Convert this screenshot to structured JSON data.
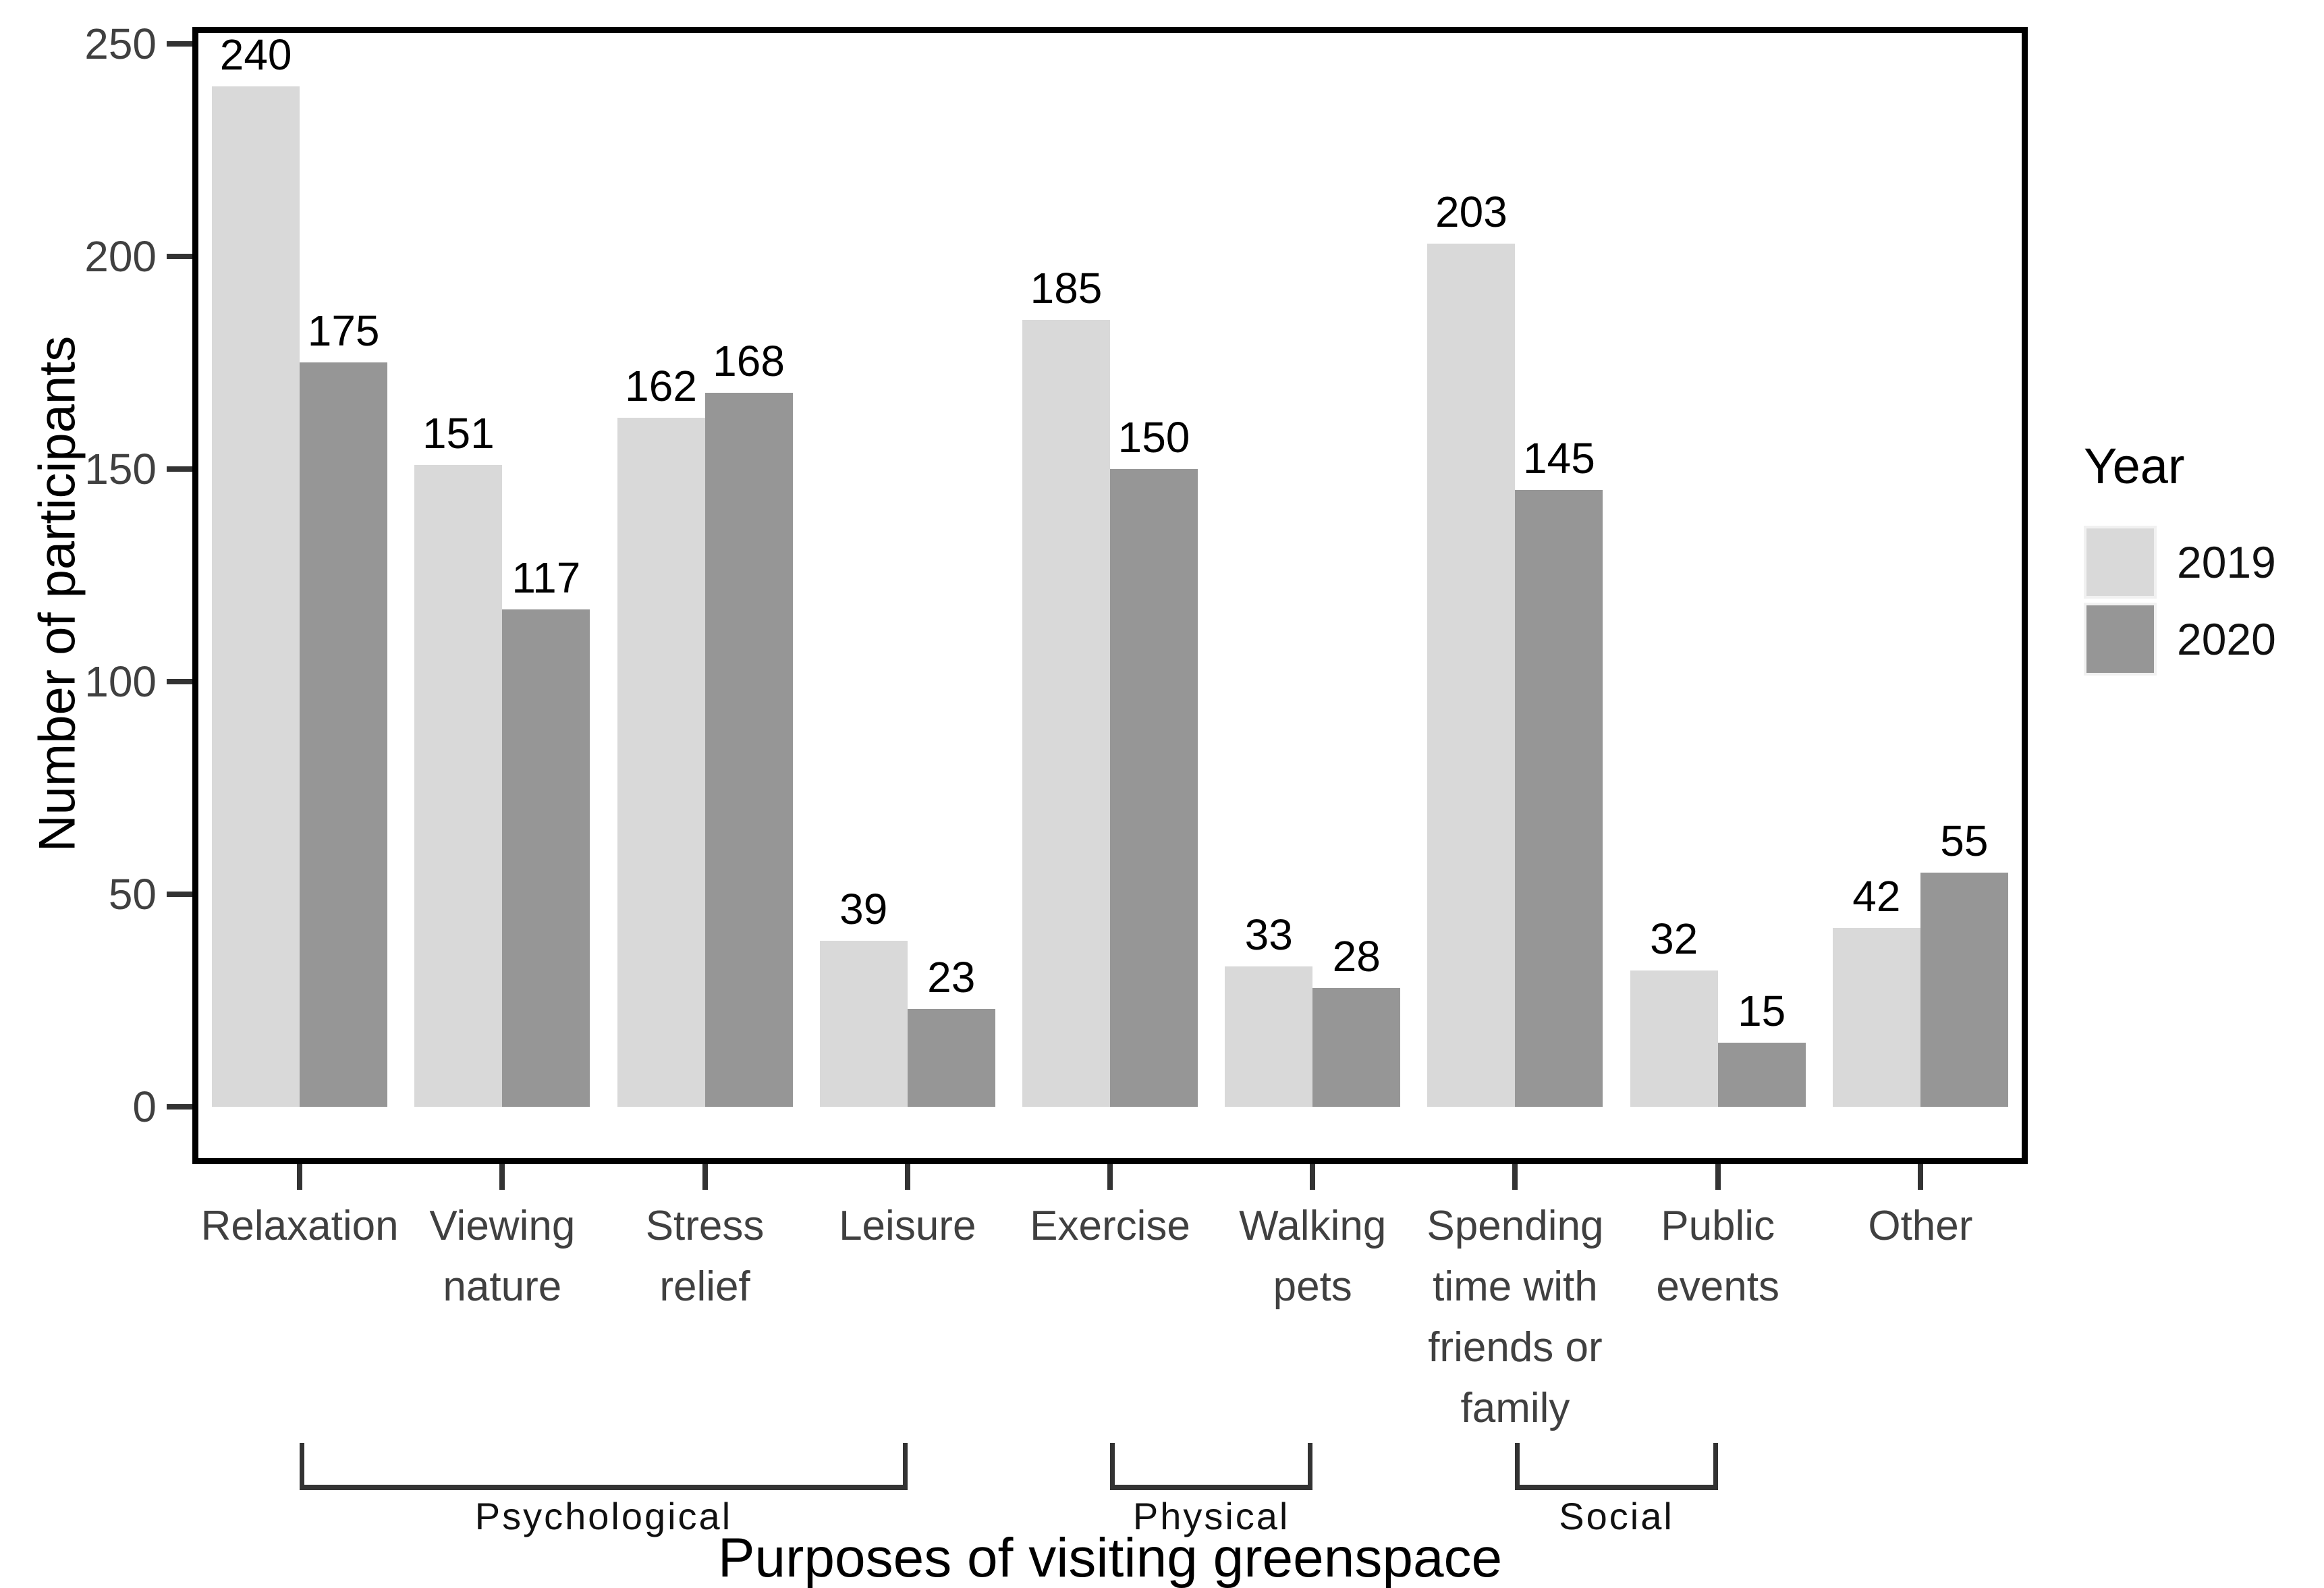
{
  "figure": {
    "background": "#ffffff"
  },
  "chart_data": {
    "type": "bar",
    "title": "",
    "xlabel": "Purposes of visiting greenspace",
    "ylabel": "Number of participants",
    "ylim": [
      0,
      250
    ],
    "yticks": [
      0,
      50,
      100,
      150,
      200,
      250
    ],
    "grid": "off",
    "bar_value_labels_shown": true,
    "legend_title": "Year",
    "legend_position": "right",
    "categories": [
      "Relaxation",
      "Viewing nature",
      "Stress relief",
      "Leisure",
      "Exercise",
      "Walking pets",
      "Spending time with friends or family",
      "Public events",
      "Other"
    ],
    "category_label_lines": [
      [
        "Relaxation"
      ],
      [
        "Viewing",
        "nature"
      ],
      [
        "Stress",
        "relief"
      ],
      [
        "Leisure"
      ],
      [
        "Exercise"
      ],
      [
        "Walking",
        "pets"
      ],
      [
        "Spending",
        "time with",
        "friends or",
        "family"
      ],
      [
        "Public",
        "events"
      ],
      [
        "Other"
      ]
    ],
    "series": [
      {
        "name": "2019",
        "color": "#d9d9d9",
        "values": [
          240,
          151,
          162,
          39,
          185,
          33,
          203,
          32,
          42
        ]
      },
      {
        "name": "2020",
        "color": "#969696",
        "values": [
          175,
          117,
          168,
          23,
          150,
          28,
          145,
          15,
          55
        ]
      }
    ],
    "category_groups": [
      {
        "label": "Psychological",
        "start_index": 0,
        "end_index": 3
      },
      {
        "label": "Physical",
        "start_index": 4,
        "end_index": 5
      },
      {
        "label": "Social",
        "start_index": 6,
        "end_index": 7
      }
    ]
  },
  "colors": {
    "bar_2019": "#d9d9d9",
    "bar_2020": "#969696",
    "panel_border": "#000000",
    "tick_mark": "#333333",
    "axis_text": "#404040",
    "value_label": "#000000",
    "bracket_line": "#333333"
  }
}
